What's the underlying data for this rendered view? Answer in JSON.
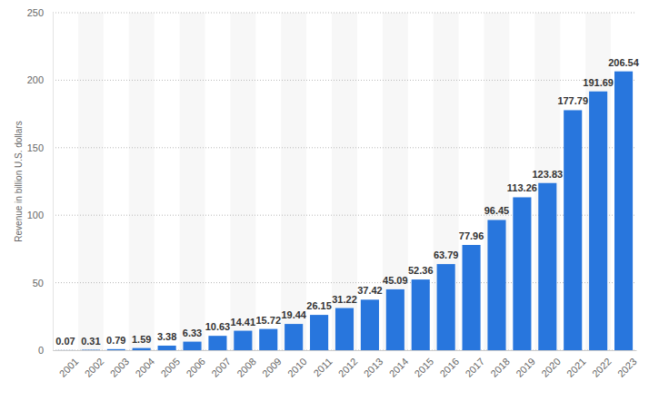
{
  "chart_data": {
    "type": "bar",
    "y_label": "Revenue in billion U.S. dollars",
    "categories": [
      "2001",
      "2002",
      "2003",
      "2004",
      "2005",
      "2006",
      "2007",
      "2008",
      "2009",
      "2010",
      "2011",
      "2012",
      "2013",
      "2014",
      "2015",
      "2016",
      "2017",
      "2018",
      "2019",
      "2020",
      "2021",
      "2022",
      "2023"
    ],
    "values": [
      0.07,
      0.31,
      0.79,
      1.59,
      3.38,
      6.33,
      10.63,
      14.41,
      15.72,
      19.44,
      26.15,
      31.22,
      37.42,
      45.09,
      52.36,
      63.79,
      77.96,
      96.45,
      113.26,
      123.83,
      177.79,
      191.69,
      206.54
    ],
    "color": "#2876dd",
    "ylim": [
      0,
      250
    ],
    "yticks": [
      0,
      50,
      100,
      150,
      200,
      250
    ],
    "grid": true,
    "data_labels": true
  }
}
